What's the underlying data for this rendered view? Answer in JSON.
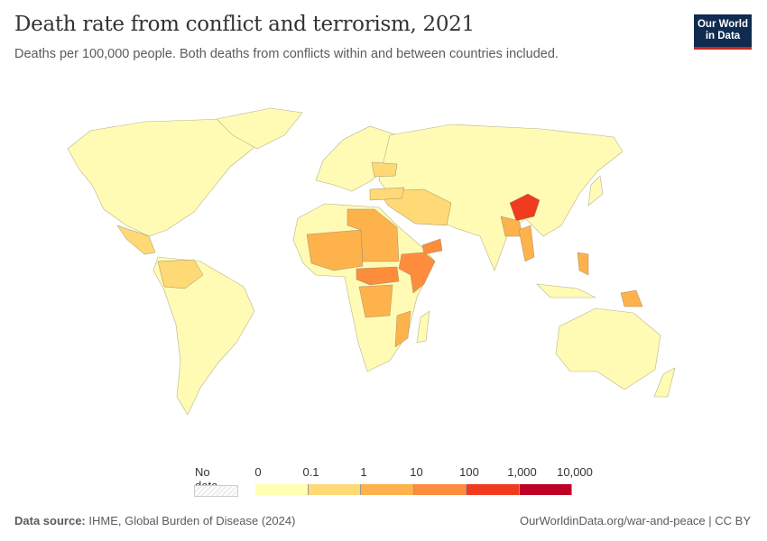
{
  "title": "Death rate from conflict and terrorism, 2021",
  "subtitle": "Deaths per 100,000 people. Both deaths from conflicts within and between countries included.",
  "logo": {
    "line1": "Our World",
    "line2": "in Data"
  },
  "legend": {
    "no_data_label": "No data",
    "ticks": [
      "0",
      "0.1",
      "1",
      "10",
      "100",
      "1,000",
      "10,000"
    ],
    "bin_colors": [
      "#ffffb2",
      "#fed976",
      "#feb24c",
      "#fd8d3c",
      "#f03b20",
      "#bd0026"
    ]
  },
  "map": {
    "base_color": "#fffbb5",
    "regions": [
      {
        "name": "Afghanistan",
        "bin": 4
      },
      {
        "name": "Syria",
        "bin": 3
      },
      {
        "name": "Yemen",
        "bin": 3
      },
      {
        "name": "Somalia/Ethiopia",
        "bin": 3
      },
      {
        "name": "South Sudan/CAR",
        "bin": 3
      },
      {
        "name": "Sahel",
        "bin": 2
      },
      {
        "name": "Libya/Sudan",
        "bin": 2
      },
      {
        "name": "DR Congo",
        "bin": 2
      },
      {
        "name": "Mozambique",
        "bin": 2
      },
      {
        "name": "Iraq/Iran",
        "bin": 1
      },
      {
        "name": "Pakistan",
        "bin": 2
      },
      {
        "name": "Myanmar",
        "bin": 2
      },
      {
        "name": "Philippines",
        "bin": 2
      },
      {
        "name": "Papua New Guinea",
        "bin": 2
      },
      {
        "name": "Colombia/Venezuela",
        "bin": 1
      },
      {
        "name": "Mexico/Central America",
        "bin": 1
      },
      {
        "name": "Ukraine",
        "bin": 1
      },
      {
        "name": "Turkey",
        "bin": 1
      }
    ]
  },
  "footer": {
    "source_label": "Data source:",
    "source": "IHME, Global Burden of Disease (2024)",
    "link": "OurWorldinData.org/war-and-peace | CC BY"
  }
}
